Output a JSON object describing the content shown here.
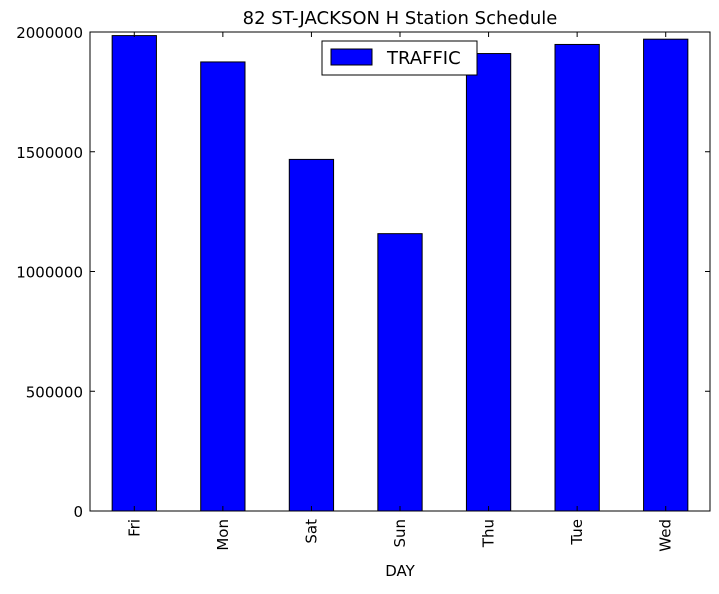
{
  "chart_data": {
    "type": "bar",
    "title": "82 ST-JACKSON H Station Schedule",
    "xlabel": "DAY",
    "ylabel": "",
    "categories": [
      "Fri",
      "Mon",
      "Sat",
      "Sun",
      "Thu",
      "Tue",
      "Wed"
    ],
    "series": [
      {
        "name": "TRAFFIC",
        "color": "#0000ff",
        "values": [
          1985000,
          1875000,
          1468000,
          1158000,
          1910000,
          1948000,
          1970000
        ]
      }
    ],
    "ylim": [
      0,
      2000000
    ],
    "yticks": [
      "0",
      "500000",
      "1000000",
      "1500000",
      "2000000"
    ],
    "ytick_values": [
      0,
      500000,
      1000000,
      1500000,
      2000000
    ],
    "grid": false,
    "legend": "top-center"
  }
}
